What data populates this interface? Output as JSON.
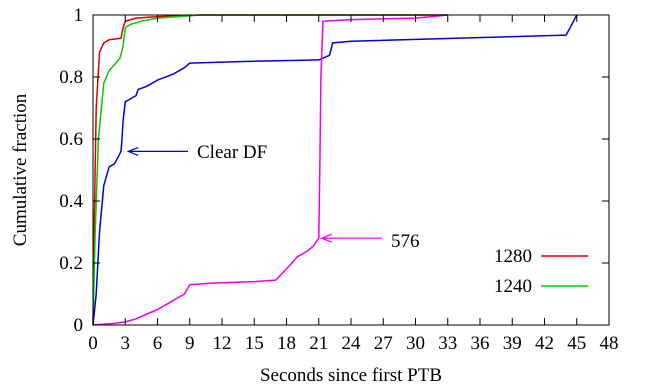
{
  "chart_data": {
    "type": "line",
    "title": "",
    "xlabel": "Seconds since first PTB",
    "ylabel": "Cumulative fraction",
    "xlim": [
      0,
      48
    ],
    "ylim": [
      0,
      1
    ],
    "xticks": [
      0,
      3,
      6,
      9,
      12,
      15,
      18,
      21,
      24,
      27,
      30,
      33,
      36,
      39,
      42,
      45,
      48
    ],
    "yticks": [
      0,
      0.2,
      0.4,
      0.6,
      0.8,
      1
    ],
    "ytick_labels": [
      "0",
      "0.2",
      "0.4",
      "0.6",
      "0.8",
      "1"
    ],
    "grid": false,
    "legend_position": "bottom-right",
    "series": [
      {
        "name": "1280",
        "color": "#e00000",
        "points": [
          [
            0,
            0
          ],
          [
            0.1,
            0.3
          ],
          [
            0.3,
            0.7
          ],
          [
            0.6,
            0.88
          ],
          [
            1,
            0.91
          ],
          [
            1.5,
            0.92
          ],
          [
            2.6,
            0.925
          ],
          [
            2.8,
            0.96
          ],
          [
            3,
            0.98
          ],
          [
            4,
            0.99
          ],
          [
            6,
            0.995
          ],
          [
            10,
            1.0
          ],
          [
            33,
            1.0
          ]
        ]
      },
      {
        "name": "1240",
        "color": "#00cc00",
        "points": [
          [
            0,
            0
          ],
          [
            0.2,
            0.3
          ],
          [
            0.5,
            0.6
          ],
          [
            1,
            0.78
          ],
          [
            1.5,
            0.82
          ],
          [
            2.5,
            0.86
          ],
          [
            2.8,
            0.9
          ],
          [
            3,
            0.96
          ],
          [
            3.5,
            0.97
          ],
          [
            4.5,
            0.98
          ],
          [
            6,
            0.99
          ],
          [
            10,
            1.0
          ],
          [
            33,
            1.0
          ]
        ]
      },
      {
        "name": "Clear DF",
        "color": "#0000dd",
        "points": [
          [
            0,
            0
          ],
          [
            0.3,
            0.1
          ],
          [
            0.6,
            0.3
          ],
          [
            1,
            0.45
          ],
          [
            1.5,
            0.51
          ],
          [
            2,
            0.52
          ],
          [
            2.6,
            0.56
          ],
          [
            2.7,
            0.6
          ],
          [
            2.8,
            0.66
          ],
          [
            3,
            0.72
          ],
          [
            4,
            0.74
          ],
          [
            4.2,
            0.76
          ],
          [
            5,
            0.77
          ],
          [
            6,
            0.79
          ],
          [
            7.5,
            0.81
          ],
          [
            8.5,
            0.83
          ],
          [
            9,
            0.845
          ],
          [
            14,
            0.85
          ],
          [
            21,
            0.855
          ],
          [
            22,
            0.87
          ],
          [
            22.3,
            0.91
          ],
          [
            24,
            0.915
          ],
          [
            44,
            0.935
          ],
          [
            44.4,
            0.96
          ],
          [
            45,
            1.0
          ]
        ]
      },
      {
        "name": "576",
        "color": "#ee00ee",
        "points": [
          [
            0,
            0
          ],
          [
            2,
            0.005
          ],
          [
            3,
            0.01
          ],
          [
            4,
            0.02
          ],
          [
            6,
            0.05
          ],
          [
            7,
            0.07
          ],
          [
            8,
            0.09
          ],
          [
            8.5,
            0.1
          ],
          [
            9,
            0.13
          ],
          [
            11,
            0.135
          ],
          [
            15,
            0.14
          ],
          [
            17,
            0.145
          ],
          [
            18.5,
            0.2
          ],
          [
            19,
            0.22
          ],
          [
            20,
            0.24
          ],
          [
            20.5,
            0.255
          ],
          [
            21,
            0.28
          ],
          [
            21.1,
            0.5
          ],
          [
            21.2,
            0.8
          ],
          [
            21.4,
            0.98
          ],
          [
            24,
            0.985
          ],
          [
            30,
            0.99
          ],
          [
            33,
            1.0
          ]
        ]
      }
    ],
    "annotations": [
      {
        "text": "Clear DF",
        "arrow_to": [
          3,
          0.56
        ]
      },
      {
        "text": "576",
        "arrow_to": [
          21,
          0.28
        ]
      }
    ],
    "legend": [
      {
        "label": "1280",
        "color": "#e00000"
      },
      {
        "label": "1240",
        "color": "#00cc00"
      }
    ]
  }
}
